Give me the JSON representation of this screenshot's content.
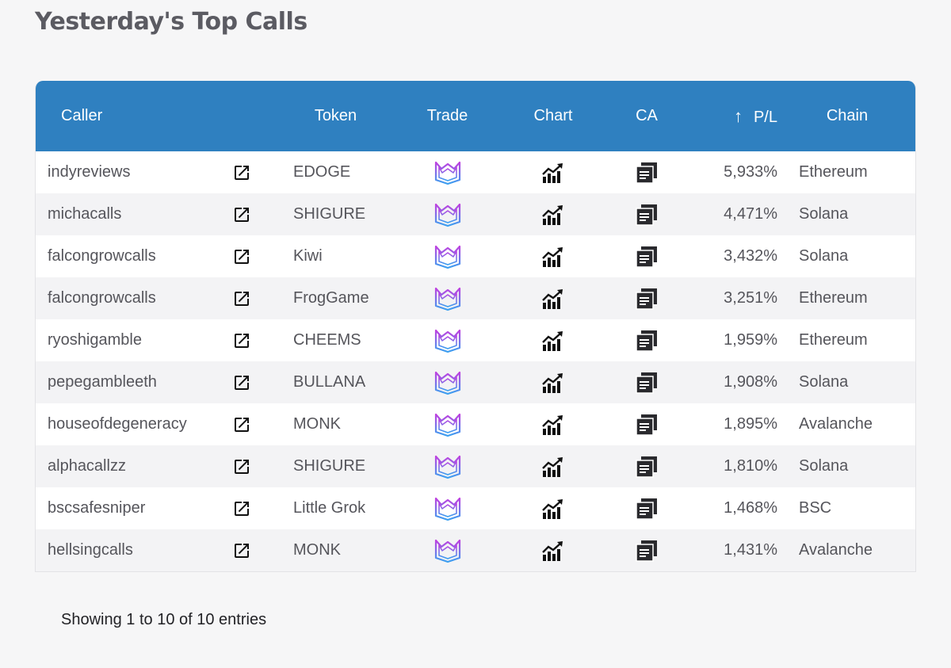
{
  "page": {
    "title": "Yesterday's Top Calls"
  },
  "table": {
    "columns": {
      "caller": "Caller",
      "token": "Token",
      "trade": "Trade",
      "chart": "Chart",
      "ca": "CA",
      "pl": "P/L",
      "chain": "Chain"
    },
    "sort": {
      "column": "P/L",
      "direction": "desc",
      "icon": "arrow-up-icon"
    },
    "row_icons": {
      "link": "external-link-icon",
      "trade": "trade-logo-icon",
      "chart": "chart-trend-icon",
      "ca": "copy-icon"
    },
    "rows": [
      {
        "caller": "indyreviews",
        "token": "EDOGE",
        "pl": "5,933%",
        "chain": "Ethereum"
      },
      {
        "caller": "michacalls",
        "token": "SHIGURE",
        "pl": "4,471%",
        "chain": "Solana"
      },
      {
        "caller": "falcongrowcalls",
        "token": "Kiwi",
        "pl": "3,432%",
        "chain": "Solana"
      },
      {
        "caller": "falcongrowcalls",
        "token": "FrogGame",
        "pl": "3,251%",
        "chain": "Ethereum"
      },
      {
        "caller": "ryoshigamble",
        "token": "CHEEMS",
        "pl": "1,959%",
        "chain": "Ethereum"
      },
      {
        "caller": "pepegambleeth",
        "token": "BULLANA",
        "pl": "1,908%",
        "chain": "Solana"
      },
      {
        "caller": "houseofdegeneracy",
        "token": "MONK",
        "pl": "1,895%",
        "chain": "Avalanche"
      },
      {
        "caller": "alphacallzz",
        "token": "SHIGURE",
        "pl": "1,810%",
        "chain": "Solana"
      },
      {
        "caller": "bscsafesniper",
        "token": "Little Grok",
        "pl": "1,468%",
        "chain": "BSC"
      },
      {
        "caller": "hellsingcalls",
        "token": "MONK",
        "pl": "1,431%",
        "chain": "Avalanche"
      }
    ]
  },
  "footer": {
    "showing": "Showing 1 to 10 of 10 entries"
  },
  "colors": {
    "header_bg": "#2f80c0",
    "page_bg": "#f6f6f7",
    "row_alt": "#f3f3f5",
    "trade_gradient_top": "#c040e0",
    "trade_gradient_bottom": "#3aa0f0"
  }
}
